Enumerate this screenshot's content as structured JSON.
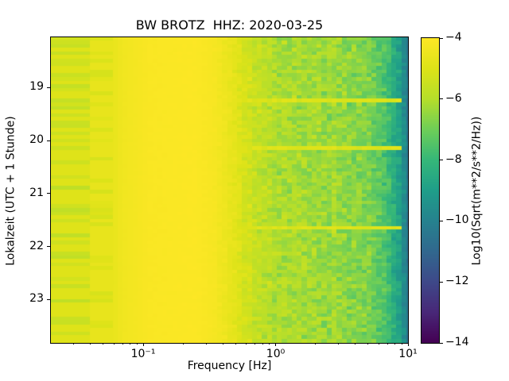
{
  "title": "BW BROTZ  HHZ: 2020-03-25",
  "axes": {
    "xlabel": "Frequency [Hz]",
    "ylabel": "Lokalzeit (UTC + 1 Stunde)",
    "x_scale": "log",
    "x_log_range": [
      -1.697,
      1.0
    ],
    "y_range": [
      18.05,
      23.82
    ],
    "x_major_ticks": [
      {
        "value": 0.1,
        "label": "10⁻¹"
      },
      {
        "value": 1.0,
        "label": "10⁰"
      },
      {
        "value": 10.0,
        "label": "10¹"
      }
    ],
    "y_major_ticks": [
      {
        "value": 19,
        "label": "19"
      },
      {
        "value": 20,
        "label": "20"
      },
      {
        "value": 21,
        "label": "21"
      },
      {
        "value": 22,
        "label": "22"
      },
      {
        "value": 23,
        "label": "23"
      }
    ]
  },
  "colorbar": {
    "label": "Log10(Sqrt(m**2/s**2/Hz))",
    "range": [
      -14,
      -4
    ],
    "ticks": [
      {
        "value": -4,
        "label": "−4"
      },
      {
        "value": -6,
        "label": "−6"
      },
      {
        "value": -8,
        "label": "−8"
      },
      {
        "value": -10,
        "label": "−10"
      },
      {
        "value": -12,
        "label": "−12"
      },
      {
        "value": -14,
        "label": "−14"
      }
    ],
    "colormap": "viridis",
    "stops": [
      [
        0.0,
        "#440154"
      ],
      [
        0.1,
        "#482878"
      ],
      [
        0.2,
        "#3e4989"
      ],
      [
        0.3,
        "#31688e"
      ],
      [
        0.4,
        "#26828e"
      ],
      [
        0.5,
        "#1f9e89"
      ],
      [
        0.6,
        "#35b779"
      ],
      [
        0.7,
        "#6ece58"
      ],
      [
        0.8,
        "#b5de2b"
      ],
      [
        0.9,
        "#dde318"
      ],
      [
        1.0,
        "#fde725"
      ]
    ]
  },
  "chart_data": {
    "type": "heatmap",
    "subtype": "seismic-ppsd-spectrogram",
    "title": "BW BROTZ  HHZ: 2020-03-25",
    "xlabel": "Frequency [Hz]",
    "ylabel": "Lokalzeit (UTC + 1 Stunde)",
    "value_units": "Log10(Sqrt(m**2/s**2/Hz))",
    "value_range": [
      -14,
      -4
    ],
    "x_scale": "log",
    "x_range_hz": [
      0.02,
      10
    ],
    "y_range_hours_local": [
      18.05,
      23.82
    ],
    "spectral_profile_log10f_vs_value": [
      [
        -1.7,
        -4.95
      ],
      [
        -1.45,
        -4.95
      ],
      [
        -1.38,
        -4.72
      ],
      [
        -1.24,
        -4.72
      ],
      [
        -1.16,
        -4.4
      ],
      [
        -0.95,
        -4.12
      ],
      [
        -0.6,
        -4.05
      ],
      [
        -0.45,
        -4.22
      ],
      [
        -0.33,
        -4.65
      ],
      [
        -0.18,
        -5.4
      ],
      [
        0.0,
        -6.05
      ],
      [
        0.45,
        -6.35
      ],
      [
        0.72,
        -6.9
      ],
      [
        0.86,
        -7.9
      ],
      [
        0.96,
        -9.3
      ],
      [
        1.0,
        -10.4
      ]
    ],
    "noise_amplitude_log10f_vs_sigma": [
      [
        -1.7,
        0.0
      ],
      [
        -0.5,
        0.03
      ],
      [
        -0.36,
        0.12
      ],
      [
        -0.2,
        0.3
      ],
      [
        0.0,
        0.42
      ],
      [
        0.6,
        0.45
      ],
      [
        0.9,
        0.4
      ],
      [
        1.0,
        0.28
      ]
    ],
    "low_freq_column_edges_log10": [
      -1.697,
      -1.402,
      -1.228
    ],
    "fine_column_step_log10": 0.0376,
    "row_count": 84,
    "streak_times_hours": [
      19.26,
      20.12,
      21.66
    ],
    "stripe_fraction_col1": 0.52,
    "stripe_fraction_col2": 0.38,
    "description": "PPSD spectrogram for one evening: bright yellow microseism band (~-4.1) between 0.06 and 0.5 Hz; striped yellow-green hourly segments (~-4.7 to -5.6) below 0.06 Hz; speckled green region (-5.5 to -7.5) from 0.6 to 6 Hz; darkening to teal (~-9 to -10.5) approaching 10 Hz; thin bright horizontal streaks near 19:16, 20:07 and 21:40 local time."
  }
}
